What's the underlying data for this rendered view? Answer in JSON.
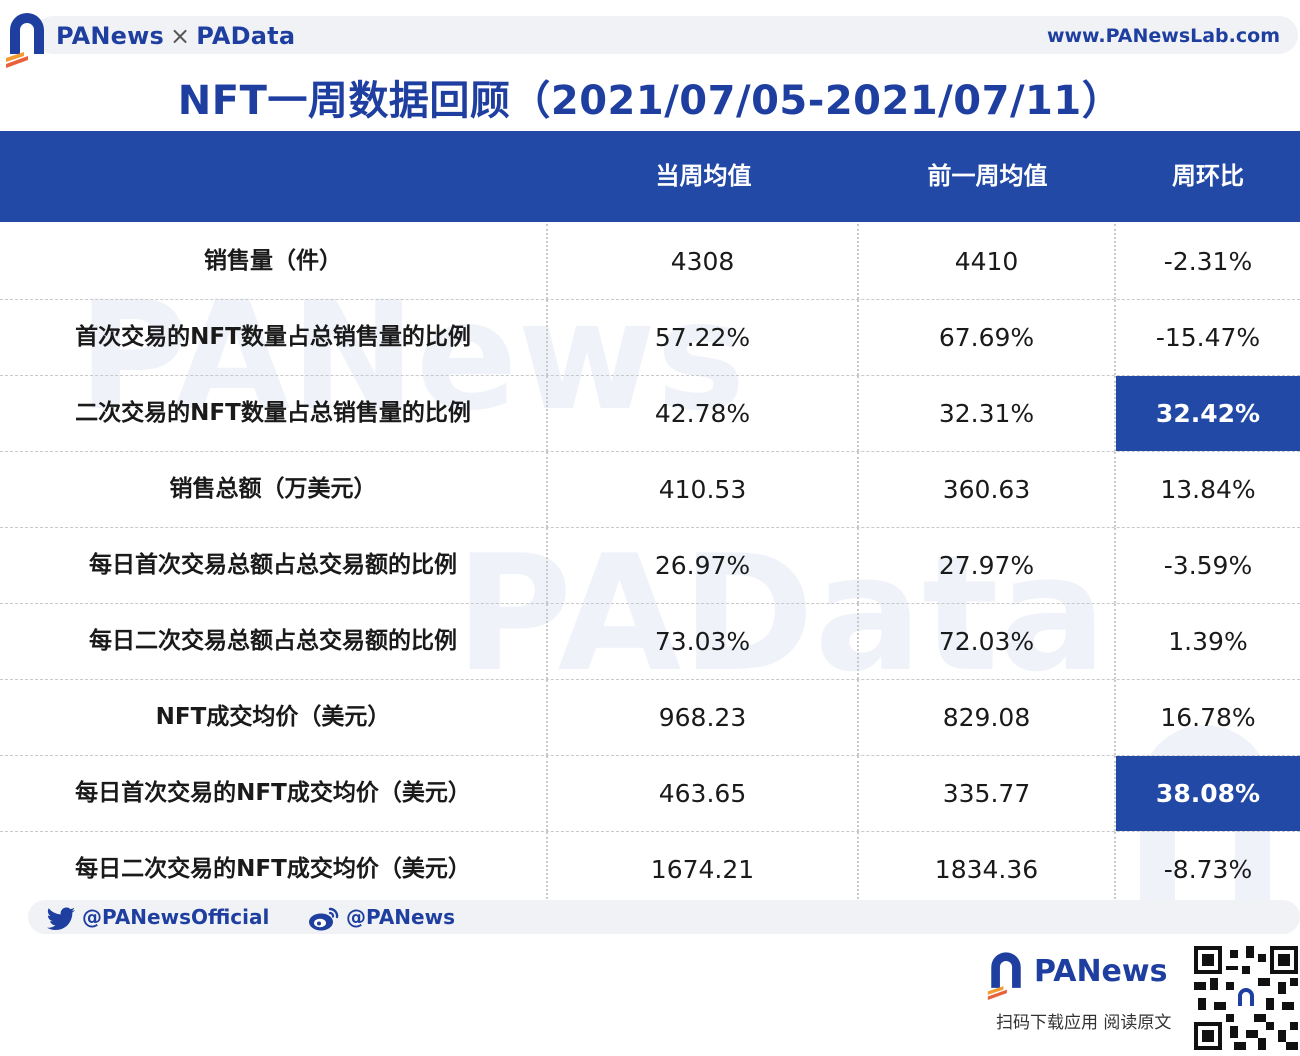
{
  "header": {
    "brand_left": "PANews",
    "brand_sep": "×",
    "brand_right": "PAData",
    "url": "www.PANewsLab.com"
  },
  "title": "NFT一周数据回顾（2021/07/05-2021/07/11）",
  "table": {
    "columns": [
      "",
      "当周均值",
      "前一周均值",
      "周环比"
    ],
    "rows": [
      {
        "label": "销售量（件）",
        "current": "4308",
        "previous": "4410",
        "change": "-2.31%",
        "highlight": false
      },
      {
        "label": "首次交易的NFT数量占总销售量的比例",
        "current": "57.22%",
        "previous": "67.69%",
        "change": "-15.47%",
        "highlight": false
      },
      {
        "label": "二次交易的NFT数量占总销售量的比例",
        "current": "42.78%",
        "previous": "32.31%",
        "change": "32.42%",
        "highlight": true
      },
      {
        "label": "销售总额（万美元）",
        "current": "410.53",
        "previous": "360.63",
        "change": "13.84%",
        "highlight": false
      },
      {
        "label": "每日首次交易总额占总交易额的比例",
        "current": "26.97%",
        "previous": "27.97%",
        "change": "-3.59%",
        "highlight": false
      },
      {
        "label": "每日二次交易总额占总交易额的比例",
        "current": "73.03%",
        "previous": "72.03%",
        "change": "1.39%",
        "highlight": false
      },
      {
        "label": "NFT成交均价（美元）",
        "current": "968.23",
        "previous": "829.08",
        "change": "16.78%",
        "highlight": false
      },
      {
        "label": "每日首次交易的NFT成交均价（美元）",
        "current": "463.65",
        "previous": "335.77",
        "change": "38.08%",
        "highlight": true
      },
      {
        "label": "每日二次交易的NFT成交均价（美元）",
        "current": "1674.21",
        "previous": "1834.36",
        "change": "-8.73%",
        "highlight": false
      }
    ]
  },
  "watermarks": [
    "PANews",
    "PAData"
  ],
  "social": {
    "twitter": "@PANewsOfficial",
    "weibo": "@PANews"
  },
  "footer": {
    "brand": "PANews",
    "subtitle": "扫码下载应用  阅读原文"
  },
  "colors": {
    "accent": "#2349a6",
    "title_blue": "#1f3fa0"
  }
}
